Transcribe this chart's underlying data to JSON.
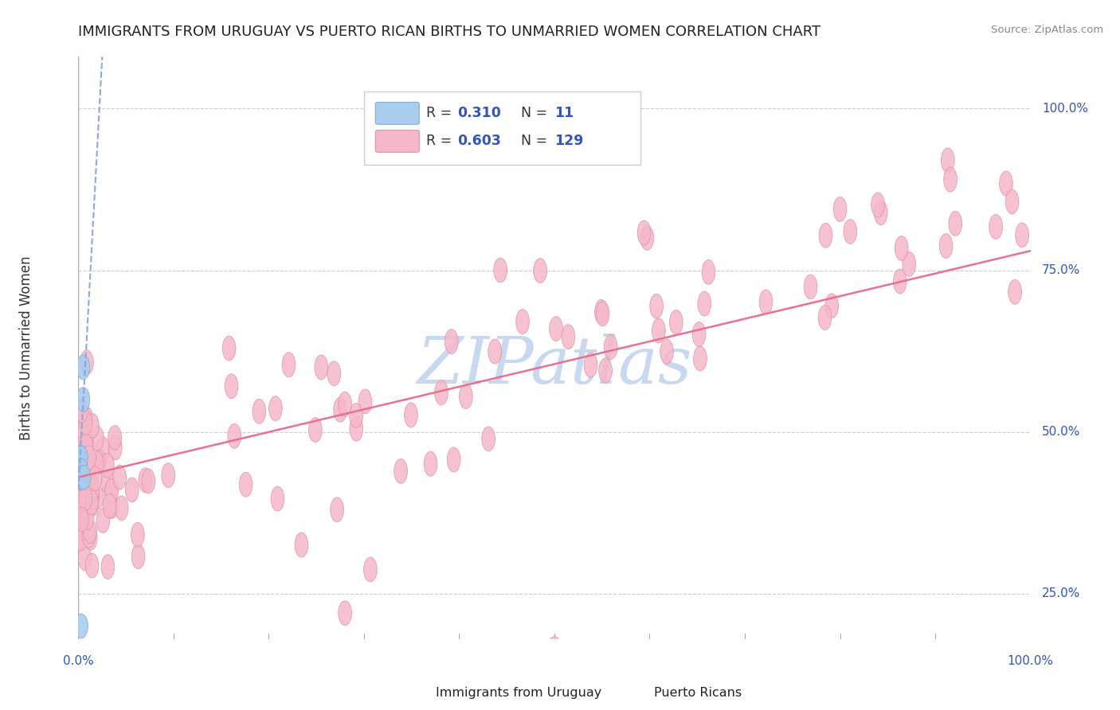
{
  "title": "IMMIGRANTS FROM URUGUAY VS PUERTO RICAN BIRTHS TO UNMARRIED WOMEN CORRELATION CHART",
  "source": "Source: ZipAtlas.com",
  "ylabel": "Births to Unmarried Women",
  "yticks": [
    0.25,
    0.5,
    0.75,
    1.0
  ],
  "ytick_labels": [
    "25.0%",
    "50.0%",
    "75.0%",
    "100.0%"
  ],
  "xlim": [
    0.0,
    1.0
  ],
  "ylim": [
    0.18,
    1.08
  ],
  "xtick_left_label": "0.0%",
  "xtick_right_label": "100.0%",
  "watermark_text": "ZIPatlas",
  "watermark_color": "#c8d8f0",
  "legend_R1": "0.310",
  "legend_N1": "11",
  "legend_R2": "0.603",
  "legend_N2": "129",
  "legend_color1": "#aaccee",
  "legend_edge1": "#88aacc",
  "legend_color2": "#f5b8c8",
  "legend_edge2": "#e090a8",
  "uruguay_color": "#aaccee",
  "uruguay_edge": "#88aacc",
  "pr_color": "#f5b8c8",
  "pr_edge": "#e090a8",
  "pr_line_color": "#e87090",
  "uru_line_color": "#88aadd",
  "grid_color": "#cccccc",
  "axis_label_color": "#3355bb",
  "title_color": "#222222",
  "source_color": "#888888",
  "bg_color": "#ffffff",
  "bottom_legend_label1": "Immigrants from Uruguay",
  "bottom_legend_label2": "Puerto Ricans"
}
